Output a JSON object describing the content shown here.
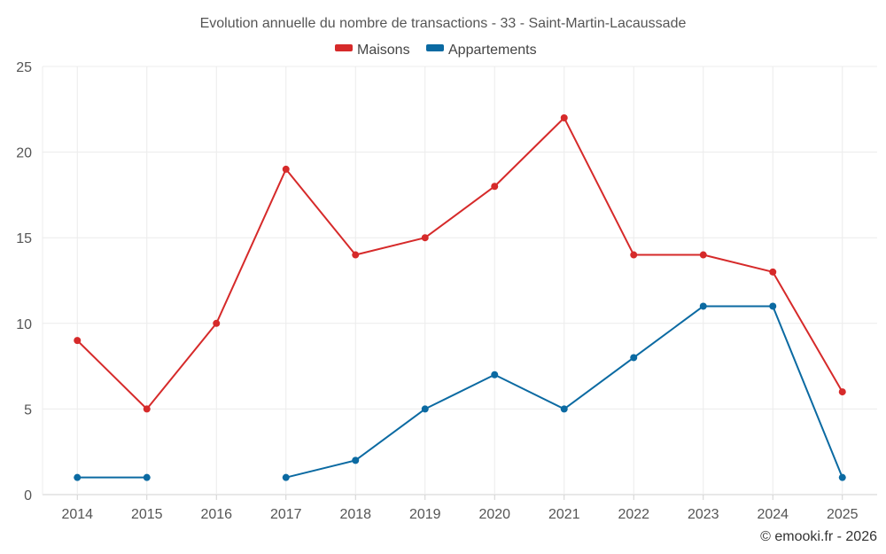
{
  "chart_data": {
    "type": "line",
    "title": "Evolution annuelle du nombre de transactions - 33 - Saint-Martin-Lacaussade",
    "categories": [
      "2014",
      "2015",
      "2016",
      "2017",
      "2018",
      "2019",
      "2020",
      "2021",
      "2022",
      "2023",
      "2024",
      "2025"
    ],
    "series": [
      {
        "name": "Maisons",
        "color": "#d62a2a",
        "values": [
          9,
          5,
          10,
          19,
          14,
          15,
          18,
          22,
          14,
          14,
          13,
          6
        ]
      },
      {
        "name": "Appartements",
        "color": "#0b6aa2",
        "values": [
          1,
          1,
          null,
          1,
          2,
          5,
          7,
          5,
          8,
          11,
          11,
          1
        ]
      }
    ],
    "ylim": [
      0,
      25
    ],
    "yticks": [
      0,
      5,
      10,
      15,
      20,
      25
    ],
    "xlabel": "",
    "ylabel": "",
    "legend": "top-center",
    "grid": true
  },
  "credit": "© emooki.fr - 2026"
}
